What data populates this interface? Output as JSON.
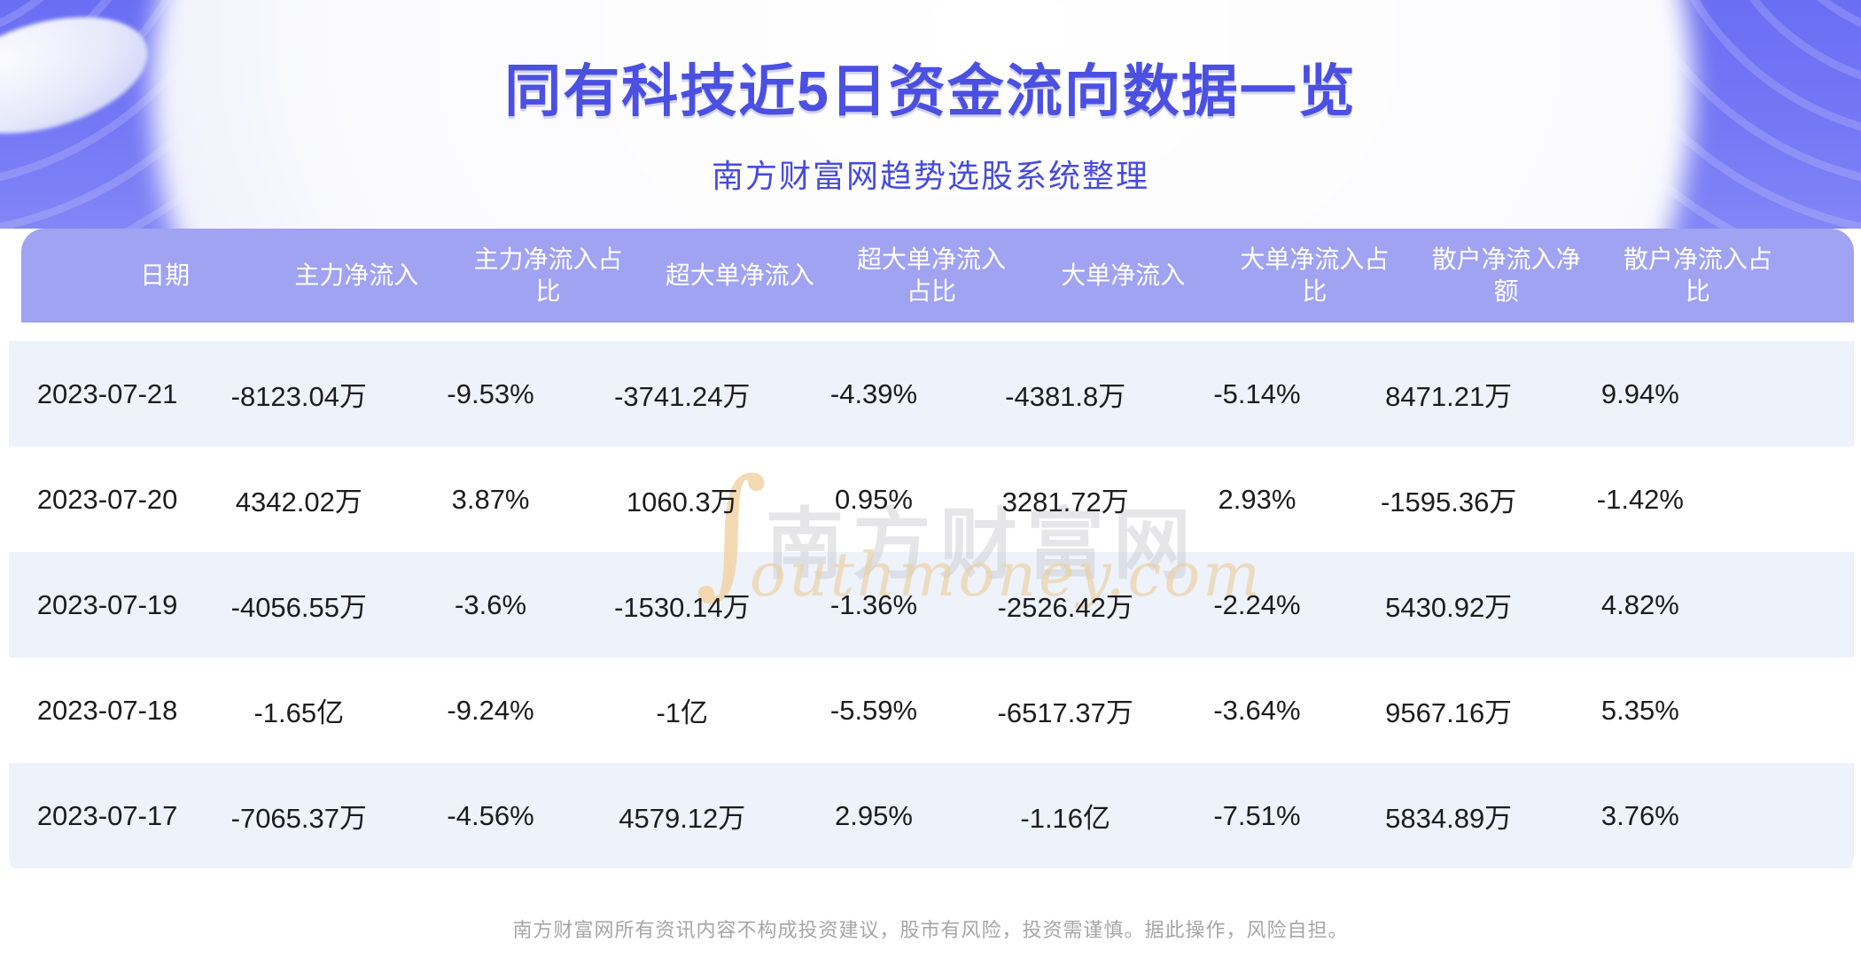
{
  "page": {
    "title": "同有科技近5日资金流向数据一览",
    "subtitle": "南方财富网趋势选股系统整理",
    "footer": "南方财富网所有资讯内容不构成投资建议，股市有风险，投资需谨慎。据此操作，风险自担。"
  },
  "watermark": {
    "swoosh": "∫",
    "cn_text": "南方财富网",
    "en_text": "outhmoney.com"
  },
  "colors": {
    "banner_purple": "#6a6ef3",
    "title_blue": "#4b50e2",
    "accent_bar": "#868ae9",
    "header_purple": "#a0a3f1",
    "row_alt_blue": "#edf2fb",
    "cell_text": "#1c1c1c",
    "footer_gray": "#a6a6a6",
    "watermark_tan": "#eccf9f"
  },
  "chart_data": {
    "type": "table",
    "title": "同有科技近5日资金流向数据一览",
    "columns": [
      "日期",
      "主力净流入",
      "主力净流入占比",
      "超大单净流入",
      "超大单净流入占比",
      "大单净流入",
      "大单净流入占比",
      "散户净流入净额",
      "散户净流入占比"
    ],
    "rows": [
      [
        "2023-07-21",
        "-8123.04万",
        "-9.53%",
        "-3741.24万",
        "-4.39%",
        "-4381.8万",
        "-5.14%",
        "8471.21万",
        "9.94%"
      ],
      [
        "2023-07-20",
        "4342.02万",
        "3.87%",
        "1060.3万",
        "0.95%",
        "3281.72万",
        "2.93%",
        "-1595.36万",
        "-1.42%"
      ],
      [
        "2023-07-19",
        "-4056.55万",
        "-3.6%",
        "-1530.14万",
        "-1.36%",
        "-2526.42万",
        "-2.24%",
        "5430.92万",
        "4.82%"
      ],
      [
        "2023-07-18",
        "-1.65亿",
        "-9.24%",
        "-1亿",
        "-5.59%",
        "-6517.37万",
        "-3.64%",
        "9567.16万",
        "5.35%"
      ],
      [
        "2023-07-17",
        "-7065.37万",
        "-4.56%",
        "4579.12万",
        "2.95%",
        "-1.16亿",
        "-7.51%",
        "5834.89万",
        "3.76%"
      ]
    ]
  }
}
